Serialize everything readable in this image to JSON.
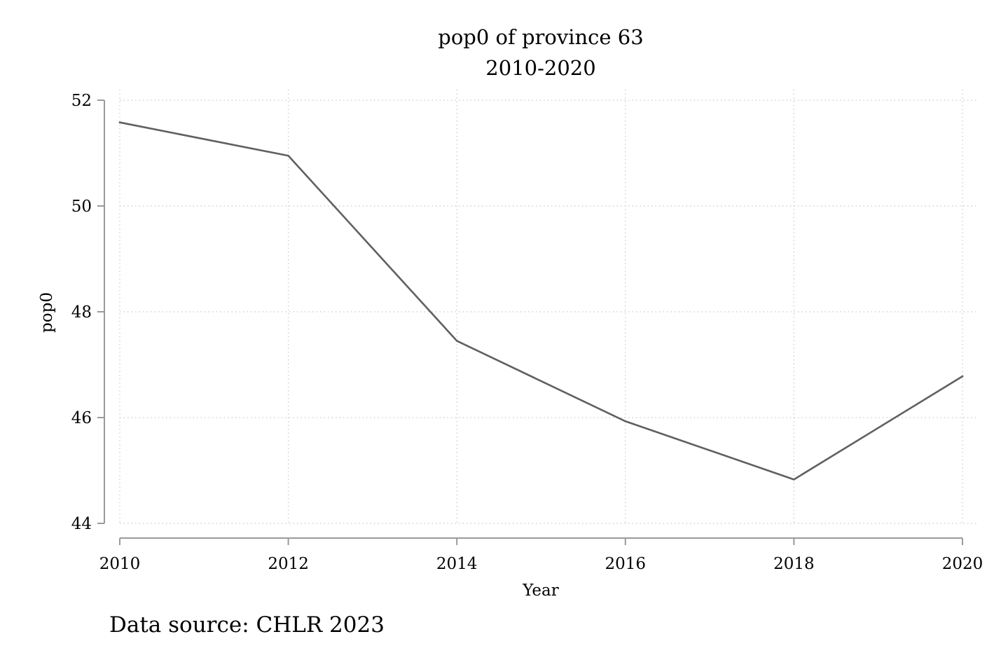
{
  "chart_data": {
    "type": "line",
    "title": "pop0 of province 63",
    "subtitle": "2010-2020",
    "xlabel": "Year",
    "ylabel": "pop0",
    "note": "Data source: CHLR 2023",
    "x": [
      2010,
      2012,
      2014,
      2016,
      2018,
      2020
    ],
    "series": [
      {
        "values": [
          51.58,
          50.95,
          47.45,
          45.93,
          44.83,
          46.78
        ]
      }
    ],
    "xticks": [
      "2010",
      "2012",
      "2014",
      "2016",
      "2018",
      "2020"
    ],
    "yticks": [
      "44",
      "46",
      "48",
      "50",
      "52"
    ],
    "xlim": [
      2010,
      2020
    ],
    "ylim": [
      44,
      52
    ],
    "grid": true,
    "line_color": "#606060",
    "axis_color": "#9a9a9a",
    "grid_color": "#c8c8c8"
  }
}
